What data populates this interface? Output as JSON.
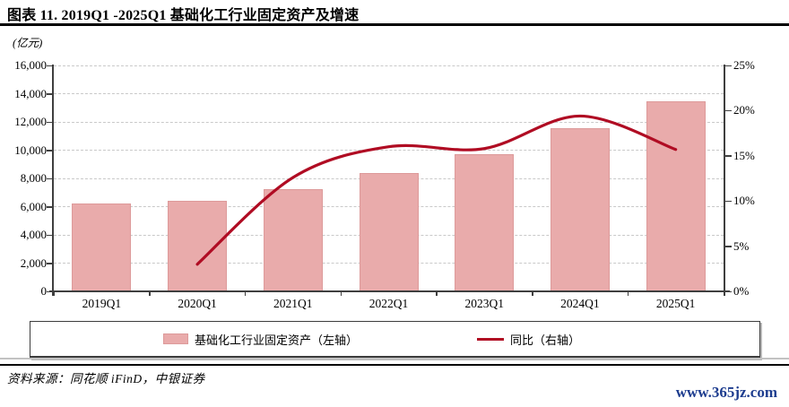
{
  "header": {
    "title": "图表 11. 2019Q1 -2025Q1 基础化工行业固定资产及增速"
  },
  "unit_label": "(亿元)",
  "legend": {
    "items": [
      {
        "label": "基础化工行业固定资产（左轴）",
        "swatch": "bar"
      },
      {
        "label": "同比（右轴）",
        "swatch": "line"
      }
    ]
  },
  "footer": {
    "source": "资料来源：同花顺 iFinD，中银证券",
    "watermark": "www.365jz.com"
  },
  "colors": {
    "bar": "#e9abab",
    "bar_border": "#dd9a9a",
    "line": "#b00c23",
    "grid": "#c9c9c9",
    "axis": "#3f3f3f",
    "watermark": "#1e3d8f"
  },
  "chart_data": {
    "type": "combo",
    "title": "图表 11. 2019Q1 -2025Q1 基础化工行业固定资产及增速",
    "categories": [
      "2019Q1",
      "2020Q1",
      "2021Q1",
      "2022Q1",
      "2023Q1",
      "2024Q1",
      "2025Q1"
    ],
    "series": [
      {
        "name": "基础化工行业固定资产（左轴）",
        "type": "bar",
        "axis": "left",
        "unit": "亿元",
        "values": [
          6230,
          6430,
          7240,
          8380,
          9700,
          11560,
          13440
        ]
      },
      {
        "name": "同比（右轴）",
        "type": "line",
        "axis": "right",
        "unit": "%",
        "values": [
          null,
          3.0,
          12.6,
          16.0,
          15.8,
          19.4,
          15.7
        ]
      }
    ],
    "left_axis": {
      "label": "(亿元)",
      "min": 0,
      "max": 16000,
      "step": 2000,
      "ticks": [
        "0",
        "2,000",
        "4,000",
        "6,000",
        "8,000",
        "10,000",
        "12,000",
        "14,000",
        "16,000"
      ]
    },
    "right_axis": {
      "min": 0,
      "max": 25,
      "step": 5,
      "ticks": [
        "0%",
        "5%",
        "10%",
        "15%",
        "20%",
        "25%"
      ]
    },
    "grid": "horizontal-dashed",
    "legend_position": "bottom"
  }
}
